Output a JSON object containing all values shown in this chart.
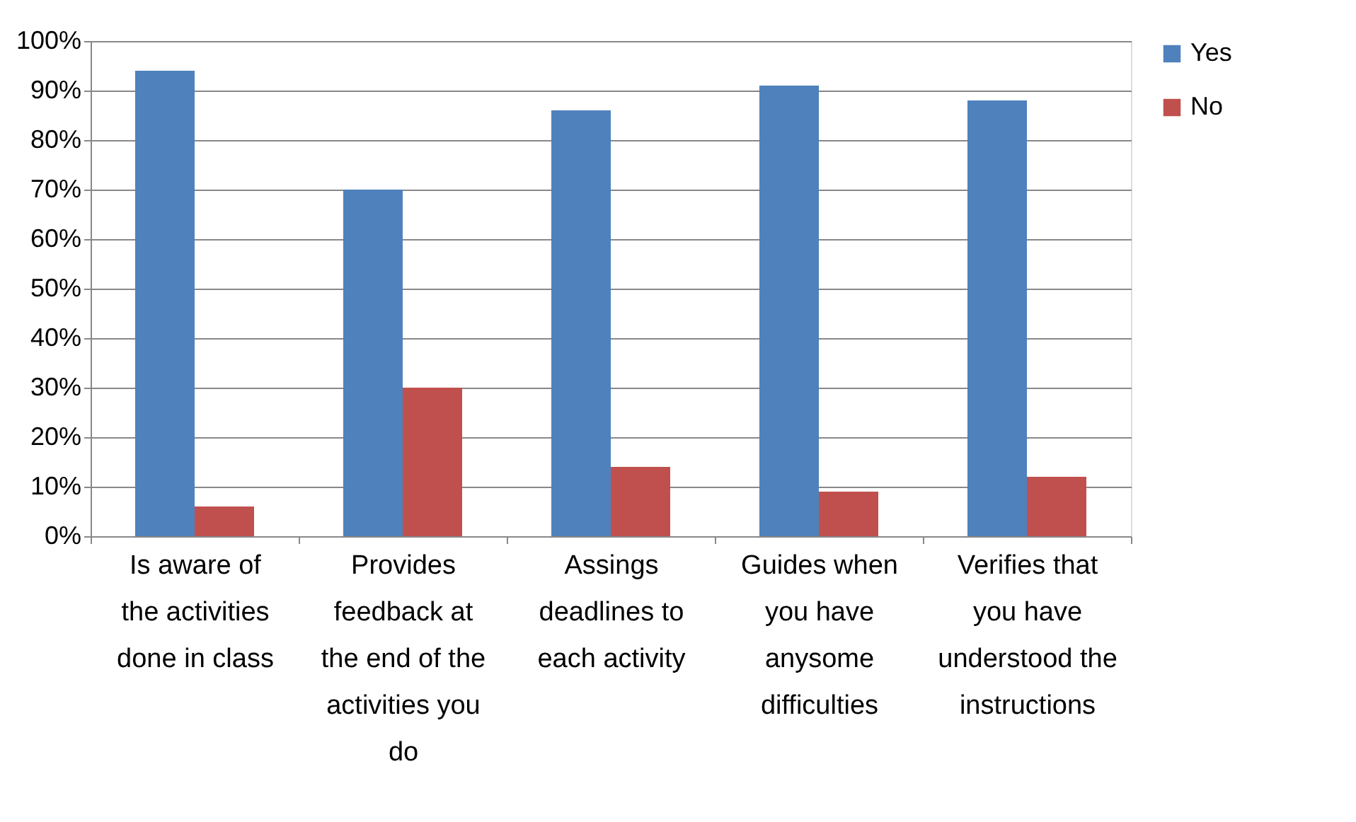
{
  "chart_data": {
    "type": "bar",
    "categories": [
      "Is aware of the activities done in class",
      "Provides feedback at the end of the activities you do",
      "Assings deadlines to each activity",
      "Guides when you have anysome difficulties",
      "Verifies that you have understood the instructions"
    ],
    "series": [
      {
        "name": "Yes",
        "color": "#4f81bd",
        "values": [
          94,
          70,
          86,
          91,
          88
        ]
      },
      {
        "name": "No",
        "color": "#c0504d",
        "values": [
          6,
          30,
          14,
          9,
          12
        ]
      }
    ],
    "ylim": [
      0,
      100
    ],
    "yticks": [
      {
        "value": 0,
        "label": "0%"
      },
      {
        "value": 10,
        "label": "10%"
      },
      {
        "value": 20,
        "label": "20%"
      },
      {
        "value": 30,
        "label": "30%"
      },
      {
        "value": 40,
        "label": "40%"
      },
      {
        "value": 50,
        "label": "50%"
      },
      {
        "value": 60,
        "label": "60%"
      },
      {
        "value": 70,
        "label": "70%"
      },
      {
        "value": 80,
        "label": "80%"
      },
      {
        "value": 90,
        "label": "90%"
      },
      {
        "value": 100,
        "label": "100%"
      }
    ],
    "grid": "y",
    "legend": "right"
  }
}
